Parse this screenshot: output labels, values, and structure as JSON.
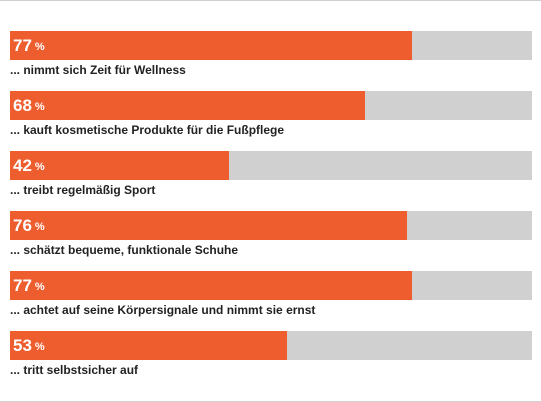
{
  "colors": {
    "bar_fill": "#ee5d2e",
    "bar_track": "#d0d0d0",
    "value_text": "#ffffff",
    "label_text": "#222222"
  },
  "chart_data": {
    "type": "bar",
    "orientation": "horizontal",
    "unit": "%",
    "xlim": [
      0,
      100
    ],
    "grid": false,
    "categories": [
      "... nimmt sich Zeit für Wellness",
      "... kauft kosmetische Produkte für die Fußpflege",
      "... treibt regelmäßig Sport",
      "... schätzt bequeme, funktionale Schuhe",
      "... achtet auf seine Körpersignale und nimmt sie ernst",
      "... tritt selbstsicher auf"
    ],
    "values": [
      77,
      68,
      42,
      76,
      77,
      53
    ],
    "value_labels": [
      "77",
      "68",
      "42",
      "76",
      "77",
      "53"
    ]
  }
}
